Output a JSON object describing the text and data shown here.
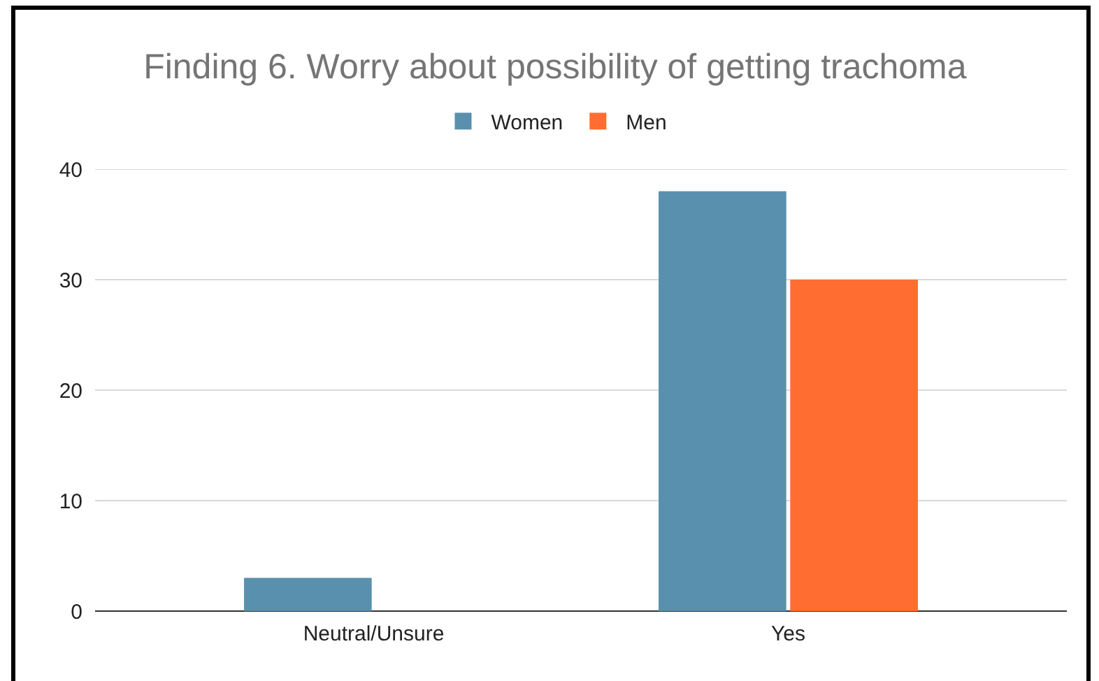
{
  "chart_data": {
    "type": "bar",
    "title": "Finding 6. Worry about possibility of getting trachoma",
    "categories": [
      "Neutral/Unsure",
      "Yes"
    ],
    "series": [
      {
        "name": "Women",
        "color": "#5990ae",
        "values": [
          3,
          38
        ]
      },
      {
        "name": "Men",
        "color": "#ff6d31",
        "values": [
          0,
          30
        ]
      }
    ],
    "ylim": [
      0,
      40
    ],
    "yticks": [
      0,
      10,
      20,
      30,
      40
    ],
    "grid": "y",
    "legend": "top"
  }
}
